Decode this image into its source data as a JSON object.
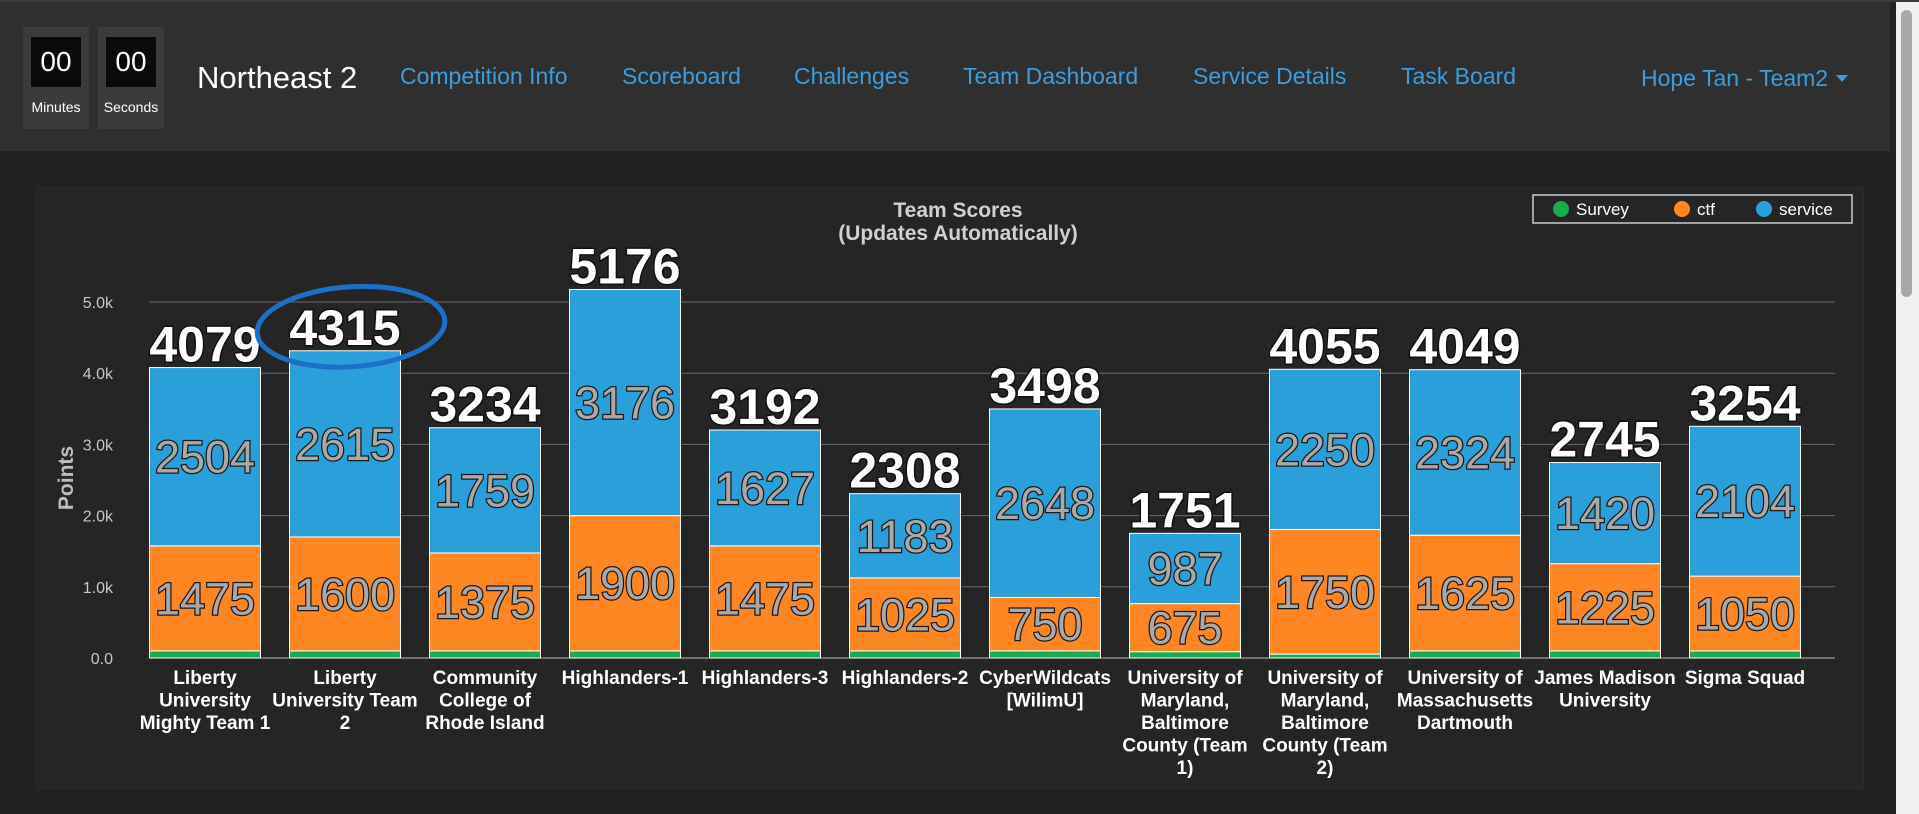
{
  "timer": {
    "minutes_value": "00",
    "minutes_label": "Minutes",
    "seconds_value": "00",
    "seconds_label": "Seconds"
  },
  "brand": "Northeast 2",
  "nav": {
    "items": [
      "Competition Info",
      "Scoreboard",
      "Challenges",
      "Team Dashboard",
      "Service Details",
      "Task Board"
    ],
    "user": "Hope Tan - Team2"
  },
  "colors": {
    "survey": "#1aab4c",
    "ctf": "#ff8622",
    "service": "#2b9fd9",
    "link": "#3d9ce0",
    "annotation": "#1f6fc9"
  },
  "chart_data": {
    "type": "bar",
    "stacked": true,
    "title": "Team Scores",
    "subtitle": "(Updates Automatically)",
    "ylabel": "Points",
    "ylim": [
      0,
      5500
    ],
    "yticks": [
      "0.0",
      "1.0k",
      "2.0k",
      "3.0k",
      "4.0k",
      "5.0k"
    ],
    "ytick_values": [
      0,
      1000,
      2000,
      3000,
      4000,
      5000
    ],
    "grid": true,
    "legend": [
      "Survey",
      "ctf",
      "service"
    ],
    "legend_position": "top-right",
    "categories": [
      [
        "Liberty",
        "University",
        "Mighty Team 1"
      ],
      [
        "Liberty",
        "University Team",
        "2"
      ],
      [
        "Community",
        "College of",
        "Rhode Island"
      ],
      [
        "Highlanders-1"
      ],
      [
        "Highlanders-3"
      ],
      [
        "Highlanders-2"
      ],
      [
        "CyberWildcats",
        "[WilimU]"
      ],
      [
        "University of",
        "Maryland,",
        "Baltimore",
        "County (Team",
        "1)"
      ],
      [
        "University of",
        "Maryland,",
        "Baltimore",
        "County (Team",
        "2)"
      ],
      [
        "University of",
        "Massachusetts",
        "Dartmouth"
      ],
      [
        "James Madison",
        "University"
      ],
      [
        "Sigma Squad"
      ]
    ],
    "series": [
      {
        "name": "Survey",
        "values": [
          100,
          100,
          100,
          100,
          100,
          100,
          100,
          89,
          55,
          100,
          100,
          100
        ]
      },
      {
        "name": "ctf",
        "values": [
          1475,
          1600,
          1375,
          1900,
          1475,
          1025,
          750,
          675,
          1750,
          1625,
          1225,
          1050
        ]
      },
      {
        "name": "service",
        "values": [
          2504,
          2615,
          1759,
          3176,
          1627,
          1183,
          2648,
          987,
          2250,
          2324,
          1420,
          2104
        ]
      }
    ],
    "ctf_labels": [
      "1475",
      "1600",
      "1375",
      "1900",
      "1475",
      "1025",
      "750",
      "675",
      "1750",
      "1625",
      "1225",
      "1050"
    ],
    "service_labels": [
      "2504",
      "2615",
      "1759",
      "3176",
      "1627",
      "1183",
      "2648",
      "987",
      "2250",
      "2324",
      "1420",
      "2104"
    ],
    "totals": [
      "4079",
      "4315",
      "3234",
      "5176",
      "3192",
      "2308",
      "3498",
      "1751",
      "4055",
      "4049",
      "2745",
      "3254"
    ],
    "highlighted_index": 1
  }
}
